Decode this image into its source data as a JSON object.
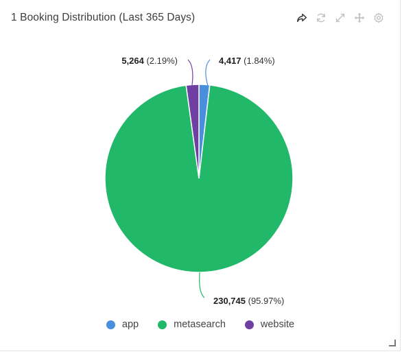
{
  "widget": {
    "title": "1 Booking Distribution (Last 365 Days)"
  },
  "toolbar": {
    "icons": [
      "share-icon",
      "refresh-icon",
      "expand-icon",
      "move-icon",
      "settings-icon"
    ]
  },
  "chart_data": {
    "type": "pie",
    "title": "1 Booking Distribution (Last 365 Days)",
    "series": [
      {
        "name": "app",
        "value": 4417,
        "value_label": "4,417",
        "percent_label": "(1.84%)",
        "color": "#4a8fde"
      },
      {
        "name": "metasearch",
        "value": 230745,
        "value_label": "230,745",
        "percent_label": "(95.97%)",
        "color": "#22b86a"
      },
      {
        "name": "website",
        "value": 5264,
        "value_label": "5,264",
        "percent_label": "(2.19%)",
        "color": "#6f3fa2"
      }
    ],
    "legend": {
      "position": "bottom"
    }
  }
}
